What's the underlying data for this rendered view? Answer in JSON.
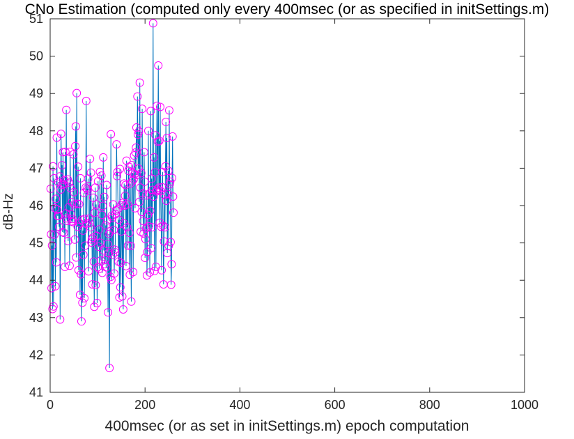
{
  "figure": {
    "title": "CNo Estimation (computed only every 400msec (or as specified in initSettings.m)",
    "xlabel": "400msec (or as set in initSettings.m) epoch computation",
    "ylabel": "dB-Hz"
  },
  "chart_data": {
    "type": "line",
    "xlim": [
      0,
      1000
    ],
    "ylim": [
      41,
      51
    ],
    "xticks": [
      0,
      200,
      400,
      600,
      800,
      1000
    ],
    "yticks": [
      41,
      42,
      43,
      44,
      45,
      46,
      47,
      48,
      49,
      50,
      51
    ],
    "grid": false,
    "series": [
      {
        "color": "#0072BD",
        "marker": "circle",
        "marker_color": "#FF00FF",
        "x_start": 1,
        "x_step": 1,
        "values": [
          46.45,
          45.23,
          43.79,
          44.93,
          43.23,
          47.05,
          43.3,
          46.73,
          45.22,
          45.93,
          43.84,
          46.18,
          44.48,
          47.82,
          45.89,
          45.72,
          46.63,
          45.72,
          45.43,
          46.78,
          42.95,
          46.43,
          47.92,
          46.55,
          47.08,
          45.29,
          47.43,
          46.57,
          45.27,
          46.68,
          44.36,
          47.44,
          45.79,
          48.56,
          45.66,
          45.59,
          46.7,
          45.05,
          45.95,
          46.61,
          44.39,
          47.44,
          46.47,
          45.77,
          45.58,
          46.09,
          45.64,
          45.56,
          47.37,
          46.36,
          46.03,
          45.09,
          47.59,
          48.12,
          44.61,
          49.01,
          46.05,
          45.43,
          47.04,
          44.27,
          46.04,
          45.53,
          43.61,
          46.73,
          44.16,
          42.9,
          45.62,
          43.4,
          45.33,
          44.68,
          46.34,
          43.52,
          45.64,
          44.93,
          46.48,
          48.8,
          45.52,
          46.45,
          46.4,
          46.72,
          44.24,
          45.65,
          45.53,
          47.25,
          45.42,
          46.88,
          45.01,
          45.09,
          43.89,
          45.14,
          46.21,
          44.5,
          43.29,
          45.81,
          46.48,
          43.87,
          46.03,
          45.19,
          43.39,
          44.35,
          46.65,
          44.9,
          45.36,
          44.31,
          46.9,
          45.0,
          44.53,
          46.8,
          45.75,
          44.2,
          45.99,
          47.29,
          44.8,
          46.23,
          44.43,
          44.56,
          45.47,
          44.35,
          46.55,
          45.6,
          44.97,
          43.14,
          44.73,
          45.24,
          41.65,
          45.31,
          44.09,
          47.91,
          44.01,
          45.73,
          45.67,
          44.69,
          46.03,
          45.35,
          44.18,
          44.82,
          44.75,
          45.77,
          45.87,
          47.64,
          46.79,
          46.9,
          45.91,
          44.5,
          45.62,
          43.54,
          46.98,
          43.81,
          44.47,
          45.31,
          46.01,
          43.57,
          46.07,
          43.22,
          45.53,
          46.59,
          46.0,
          46.26,
          46.55,
          44.38,
          47.2,
          45.42,
          46.03,
          44.93,
          46.93,
          47.04,
          45.27,
          44.15,
          46.59,
          44.92,
          43.43,
          47.08,
          46.65,
          46.87,
          44.22,
          46.7,
          47.34,
          46.84,
          45.93,
          47.42,
          47.55,
          48.09,
          46.82,
          48.92,
          47.9,
          46.99,
          47.98,
          46.1,
          49.29,
          46.48,
          45.3,
          46.87,
          45.83,
          48.59,
          46.33,
          45.59,
          45.25,
          47.43,
          46.64,
          44.6,
          45.1,
          45.38,
          46.27,
          44.13,
          44.76,
          45.75,
          48.0,
          45.44,
          46.32,
          44.21,
          45.86,
          48.53,
          44.86,
          46.72,
          45.42,
          46.42,
          50.88,
          46.24,
          47.29,
          44.25,
          46.89,
          47.88,
          44.36,
          46.38,
          48.67,
          46.43,
          47.71,
          49.75,
          46.48,
          47.73,
          45.54,
          48.64,
          46.39,
          45.43,
          44.27,
          46.49,
          46.9,
          45.46,
          43.89,
          45.04,
          46.28,
          45.42,
          47.05,
          48.24,
          46.13,
          47.81,
          44.73,
          46.31,
          46.93,
          44.92,
          48.55,
          46.57,
          46.64,
          45.02,
          43.88,
          44.43,
          46.74,
          47.85,
          46.24,
          45.81
        ]
      }
    ]
  }
}
